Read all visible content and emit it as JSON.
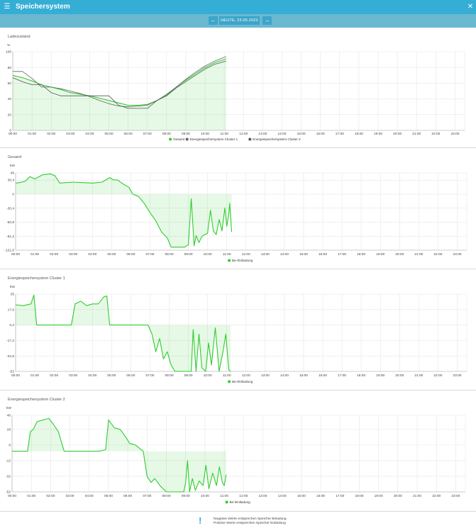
{
  "header": {
    "title": "Speichersystem",
    "menu_icon": "menu-icon",
    "close_icon": "close-icon"
  },
  "datebar": {
    "date_label": "HEUTE, 23.05.2023",
    "prev_icon": "arrow-left-icon",
    "next_icon": "arrow-right-icon"
  },
  "colors": {
    "primary": "#35aed5",
    "series_green": "#2ecc2e",
    "series_gray1": "#666666",
    "series_gray2": "#555555"
  },
  "hours": [
    "00:00",
    "01:00",
    "02:00",
    "03:00",
    "04:00",
    "05:00",
    "06:00",
    "07:00",
    "08:00",
    "09:00",
    "10:00",
    "11:00",
    "12:00",
    "13:00",
    "14:00",
    "15:00",
    "16:00",
    "17:00",
    "18:00",
    "19:00",
    "20:00",
    "21:00",
    "22:00",
    "23:00"
  ],
  "footer": {
    "icon": "exclamation-icon",
    "line1": "Negative Werte entsprechen Speicher Beladung",
    "line2": "Positive Werte entsprechen Speicher Entladung"
  },
  "chart_data": [
    {
      "type": "line",
      "title": "Ladezustand",
      "ylabel": "%",
      "ylim": [
        0,
        100
      ],
      "yticks": [
        "0",
        "20",
        "40",
        "60",
        "80",
        "100"
      ],
      "x": [
        0,
        0.5,
        1,
        1.5,
        2,
        2.5,
        3,
        3.5,
        4,
        4.5,
        5,
        5.5,
        6,
        6.5,
        7,
        7.5,
        8,
        8.5,
        9,
        9.5,
        10,
        10.5,
        11.1
      ],
      "series": [
        {
          "name": "Gesamt",
          "color": "#2ecc2e",
          "fill": true,
          "values": [
            70,
            67,
            63,
            58,
            55,
            52,
            48,
            46,
            44,
            41,
            38,
            35,
            32,
            32,
            33,
            38,
            45,
            55,
            64,
            72,
            80,
            86,
            91
          ]
        },
        {
          "name": "Energiespeichersystem Cluster 1",
          "color": "#666666",
          "fill": false,
          "values": [
            75,
            75,
            66,
            55,
            55,
            53,
            50,
            47,
            43,
            38,
            34,
            31,
            30,
            31,
            32,
            38,
            46,
            55,
            65,
            74,
            82,
            88,
            94
          ]
        },
        {
          "name": "Energiespeichersystem Cluster 2",
          "color": "#555555",
          "fill": false,
          "values": [
            67,
            62,
            58,
            58,
            48,
            44,
            44,
            44,
            44,
            44,
            44,
            32,
            28,
            28,
            28,
            38,
            44,
            54,
            62,
            70,
            78,
            84,
            88
          ]
        }
      ],
      "legend": "bottom",
      "grid": true
    },
    {
      "type": "line",
      "title": "Gesamt",
      "ylabel": "kW",
      "ylim": [
        -121.6,
        46
      ],
      "yticks": [
        "-121,6",
        "-91,2",
        "-60,8",
        "-30,4",
        "0",
        "30,4",
        "46"
      ],
      "x": [
        0,
        0.2,
        0.5,
        0.75,
        1,
        1.4,
        1.8,
        2.05,
        2.3,
        2.6,
        3,
        3.5,
        4,
        4.5,
        4.9,
        5.1,
        5.3,
        5.6,
        5.9,
        6.1,
        6.4,
        6.7,
        7,
        7.3,
        7.6,
        7.9,
        8.1,
        8.3,
        8.6,
        8.8,
        9.0,
        9.15,
        9.3,
        9.4,
        9.55,
        9.7,
        9.85,
        10,
        10.15,
        10.3,
        10.45,
        10.6,
        10.75,
        10.9,
        11.0,
        11.1,
        11.15,
        11.25
      ],
      "series": [
        {
          "name": "Be-/Entladung",
          "color": "#2ecc2e",
          "fill": true,
          "values": [
            24,
            25,
            28,
            38,
            33,
            42,
            44,
            40,
            24,
            25,
            26,
            25,
            24,
            26,
            36,
            31,
            31,
            22,
            15,
            0,
            -5,
            -20,
            -40,
            -58,
            -82,
            -95,
            -115,
            -115,
            -115,
            -115,
            -110,
            -10,
            -112,
            -90,
            -105,
            -92,
            -88,
            -85,
            -35,
            -80,
            -88,
            -55,
            -80,
            -30,
            -70,
            -45,
            -20,
            -82
          ],
          "_note": ""
        }
      ],
      "legend": "bottom",
      "grid": true
    },
    {
      "type": "line",
      "title": "Energiespeichersystem Cluster 1",
      "ylabel": "kW",
      "ylim": [
        -52,
        35
      ],
      "yticks": [
        "-52",
        "-34,8",
        "-17,2",
        "0,2",
        "17,6",
        "35"
      ],
      "x": [
        0,
        0.4,
        0.8,
        0.95,
        1.1,
        1.4,
        2,
        2.5,
        2.9,
        3.1,
        3.4,
        3.7,
        4,
        4.3,
        4.6,
        4.75,
        4.9,
        5.4,
        6,
        6.5,
        6.9,
        7.1,
        7.3,
        7.5,
        7.7,
        7.9,
        8.1,
        8.3,
        8.6,
        8.9,
        9.15,
        9.25,
        9.4,
        9.55,
        9.7,
        9.9,
        10.05,
        10.2,
        10.4,
        10.6,
        10.8,
        10.95,
        11.1,
        11.2
      ],
      "series": [
        {
          "name": "Be-/Entladung",
          "color": "#2ecc2e",
          "fill": true,
          "values": [
            23,
            22,
            24,
            34,
            0.2,
            0.2,
            0.2,
            0.2,
            0.2,
            24,
            27,
            22,
            24,
            24,
            32,
            33,
            0.2,
            0.2,
            0.2,
            0.2,
            0.2,
            -10,
            -30,
            -15,
            -38,
            -30,
            -45,
            -52,
            -52,
            -52,
            -52,
            -5,
            -52,
            -10,
            -48,
            -52,
            -20,
            -45,
            -3,
            -52,
            -30,
            -10,
            -50,
            -52
          ]
        }
      ],
      "legend": "bottom",
      "grid": true
    },
    {
      "type": "line",
      "title": "Energiespeichersystem Cluster 2",
      "ylabel": "kW",
      "ylim": [
        -52,
        46
      ],
      "yticks": [
        "-52",
        "-32",
        "-12",
        "8",
        "28",
        "46"
      ],
      "x": [
        0,
        0.5,
        0.8,
        0.95,
        1.1,
        1.3,
        1.6,
        1.9,
        2.1,
        2.4,
        2.7,
        3,
        3.5,
        4,
        4.5,
        4.85,
        5,
        5.3,
        5.6,
        5.9,
        6.1,
        6.4,
        6.8,
        7,
        7.2,
        7.4,
        7.7,
        8,
        8.3,
        8.6,
        8.9,
        9.0,
        9.1,
        9.2,
        9.35,
        9.5,
        9.7,
        9.9,
        10.05,
        10.2,
        10.4,
        10.6,
        10.75,
        10.9,
        11.0,
        11.1
      ],
      "series": [
        {
          "name": "Be-/Entladung",
          "color": "#2ecc2e",
          "fill": true,
          "values": [
            0,
            0,
            0,
            25,
            28,
            38,
            40,
            42,
            36,
            25,
            0,
            0,
            0,
            0,
            0,
            2,
            40,
            30,
            28,
            18,
            10,
            8,
            0,
            -32,
            -40,
            -35,
            -45,
            -52,
            -52,
            -52,
            -52,
            -40,
            -12,
            -52,
            -35,
            -50,
            -38,
            -44,
            -18,
            -48,
            -28,
            -44,
            -20,
            -40,
            -44,
            -30
          ]
        }
      ],
      "legend": "bottom",
      "grid": true
    }
  ]
}
